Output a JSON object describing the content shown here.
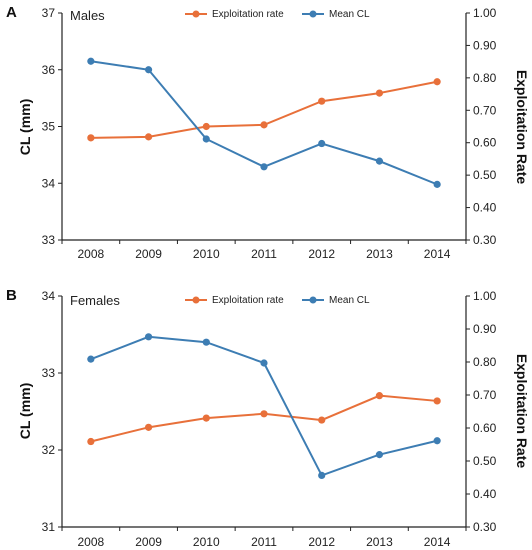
{
  "chart_data": [
    {
      "panel_label": "A",
      "subtitle": "Males",
      "type": "line",
      "x": [
        "2008",
        "2009",
        "2010",
        "2011",
        "2012",
        "2013",
        "2014"
      ],
      "ylabel_left": "CL (mm)",
      "ylabel_right": "Exploitation Rate",
      "yticks_left": [
        "33",
        "34",
        "35",
        "36",
        "37"
      ],
      "yticks_right": [
        "0.30",
        "0.40",
        "0.50",
        "0.60",
        "0.70",
        "0.80",
        "0.90",
        "1.00"
      ],
      "ylim_left": [
        33,
        37
      ],
      "ylim_right": [
        0.3,
        1.0
      ],
      "legend_position": "top-center",
      "series": [
        {
          "name": "Exploitation rate",
          "axis": "right",
          "color": "#e8703a",
          "values": [
            0.615,
            0.618,
            0.65,
            0.655,
            0.728,
            0.753,
            0.788
          ]
        },
        {
          "name": "Mean CL",
          "axis": "left",
          "color": "#3d7db3",
          "values": [
            36.15,
            36.0,
            34.78,
            34.29,
            34.7,
            34.39,
            33.98
          ]
        }
      ]
    },
    {
      "panel_label": "B",
      "subtitle": "Females",
      "type": "line",
      "x": [
        "2008",
        "2009",
        "2010",
        "2011",
        "2012",
        "2013",
        "2014"
      ],
      "ylabel_left": "CL (mm)",
      "ylabel_right": "Exploitation Rate",
      "yticks_left": [
        "31",
        "32",
        "33",
        "34"
      ],
      "yticks_right": [
        "0.30",
        "0.40",
        "0.50",
        "0.60",
        "0.70",
        "0.80",
        "0.90",
        "1.00"
      ],
      "ylim_left": [
        31,
        34
      ],
      "ylim_right": [
        0.3,
        1.0
      ],
      "legend_position": "top-center",
      "series": [
        {
          "name": "Exploitation rate",
          "axis": "right",
          "color": "#e8703a",
          "values": [
            0.559,
            0.602,
            0.63,
            0.643,
            0.624,
            0.698,
            0.682
          ]
        },
        {
          "name": "Mean CL",
          "axis": "left",
          "color": "#3d7db3",
          "values": [
            33.18,
            33.47,
            33.4,
            33.13,
            31.67,
            31.94,
            32.12
          ]
        }
      ]
    }
  ]
}
